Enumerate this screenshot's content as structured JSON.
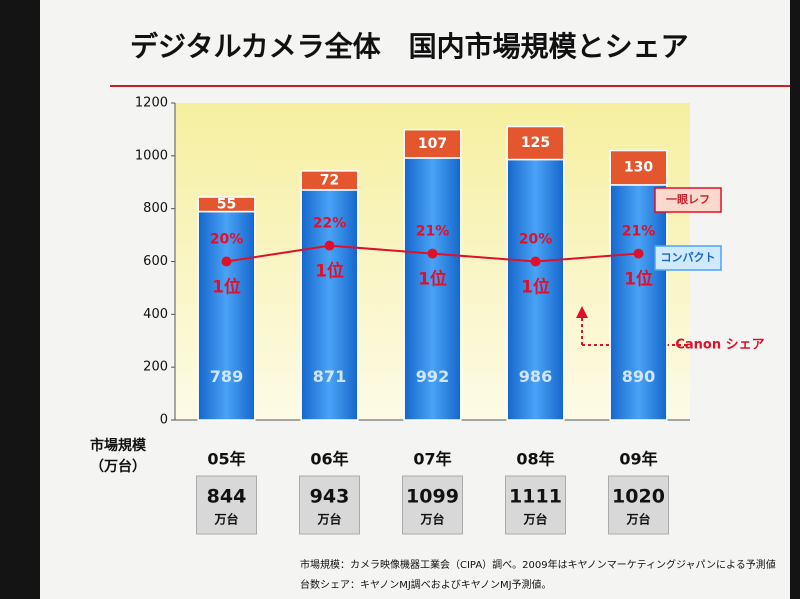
{
  "chart_data": {
    "type": "bar",
    "stacked": true,
    "title": "デジタルカメラ全体　国内市場規模とシェア",
    "categories": [
      "05年",
      "06年",
      "07年",
      "08年",
      "09年"
    ],
    "series": [
      {
        "name": "コンパクト",
        "color": "#1f7fe6",
        "values": [
          789,
          871,
          992,
          986,
          890
        ]
      },
      {
        "name": "一眼レフ",
        "color": "#e4572e",
        "values": [
          55,
          72,
          107,
          125,
          130
        ]
      },
      {
        "name": "Canon シェア",
        "color": "#e0102a",
        "type": "line",
        "axis": "y2",
        "values": [
          20,
          22,
          21,
          20,
          21
        ],
        "value_labels": [
          "20%",
          "22%",
          "21%",
          "20%",
          "21%"
        ],
        "rank_labels": [
          "1位",
          "1位",
          "1位",
          "1位",
          "1位"
        ]
      }
    ],
    "ylim": [
      0,
      1200
    ],
    "yticks": [
      0,
      200,
      400,
      600,
      800,
      1000,
      1200
    ],
    "y2lim": [
      0,
      40
    ],
    "totals_label": "市場規模",
    "totals_unit_label": "（万台）",
    "totals": [
      844,
      943,
      1099,
      1111,
      1020
    ],
    "totals_unit": "万台",
    "notes": [
      "市場規模：カメラ映像機器工業会（CIPA）調べ。2009年はキヤノンマーケティングジャパンによる予測値",
      "台数シェア：キヤノンMJ調べおよびキヤノンMJ予測値。"
    ]
  }
}
